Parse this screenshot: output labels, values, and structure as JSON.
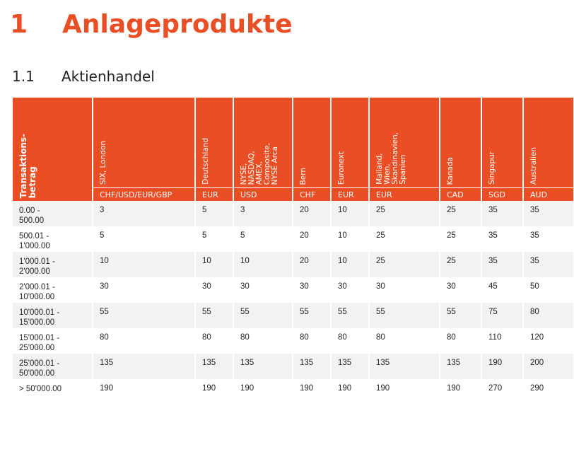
{
  "heading": {
    "number": "1",
    "title": "Anlageprodukte"
  },
  "subheading": {
    "number": "1.1",
    "title": "Aktienhandel"
  },
  "table": {
    "corner_label": "Transaktions-\nbetrag",
    "columns": [
      {
        "label": "SIX, London",
        "currency": "CHF/USD/EUR/GBP"
      },
      {
        "label": "Deutschland",
        "currency": "EUR"
      },
      {
        "label": "NYSE,\nNASDAQ,\nAMEX,\nComposite,\nNYSE Arca",
        "currency": "USD"
      },
      {
        "label": "Bern",
        "currency": "CHF"
      },
      {
        "label": "Euronext",
        "currency": "EUR"
      },
      {
        "label": "Mailand,\nWien,\nSkandinavien,\nSpanien",
        "currency": "EUR"
      },
      {
        "label": "Kanada",
        "currency": "CAD"
      },
      {
        "label": "Singapur",
        "currency": "SGD"
      },
      {
        "label": "Australien",
        "currency": "AUD"
      }
    ],
    "rows": [
      {
        "amount": "0.00 -\n500.00",
        "values": [
          "3",
          "5",
          "3",
          "20",
          "10",
          "25",
          "25",
          "35",
          "35"
        ]
      },
      {
        "amount": "500.01 -\n1'000.00",
        "values": [
          "5",
          "5",
          "5",
          "20",
          "10",
          "25",
          "25",
          "35",
          "35"
        ]
      },
      {
        "amount": "1'000.01 -\n2'000.00",
        "values": [
          "10",
          "10",
          "10",
          "20",
          "10",
          "25",
          "25",
          "35",
          "35"
        ]
      },
      {
        "amount": "2'000.01 -\n10'000.00",
        "values": [
          "30",
          "30",
          "30",
          "30",
          "30",
          "30",
          "30",
          "45",
          "50"
        ]
      },
      {
        "amount": "10'000.01 -\n15'000.00",
        "values": [
          "55",
          "55",
          "55",
          "55",
          "55",
          "55",
          "55",
          "75",
          "80"
        ]
      },
      {
        "amount": "15'000.01 -\n25'000.00",
        "values": [
          "80",
          "80",
          "80",
          "80",
          "80",
          "80",
          "80",
          "110",
          "120"
        ]
      },
      {
        "amount": "25'000.01 -\n50'000.00",
        "values": [
          "135",
          "135",
          "135",
          "135",
          "135",
          "135",
          "135",
          "190",
          "200"
        ]
      },
      {
        "amount": "> 50'000.00",
        "values": [
          "190",
          "190",
          "190",
          "190",
          "190",
          "190",
          "190",
          "270",
          "290"
        ]
      }
    ]
  },
  "colors": {
    "accent": "#e94e24",
    "stripe": "#f2f2f2"
  }
}
